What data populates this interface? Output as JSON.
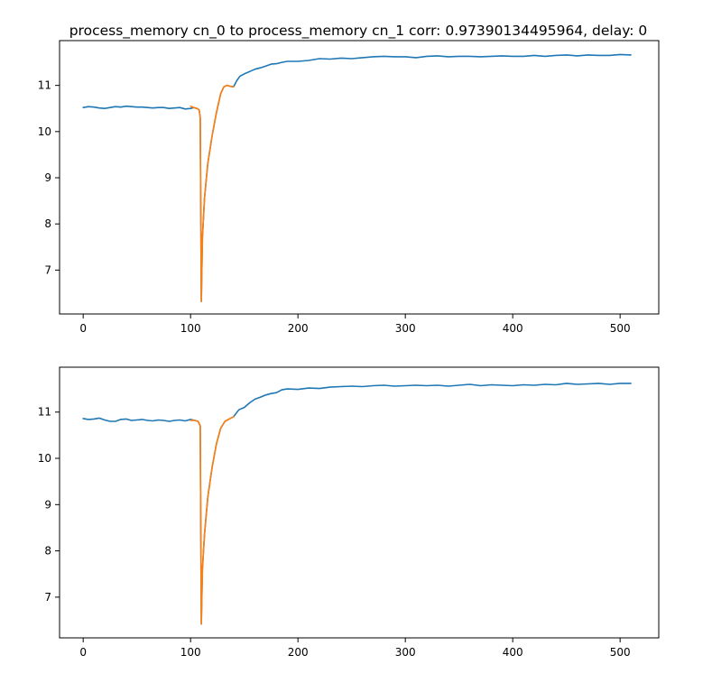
{
  "figure": {
    "title": "process_memory cn_0 to process_memory cn_1  corr: 0.97390134495964, delay: 0"
  },
  "chart_data": [
    {
      "type": "line",
      "title": "",
      "xlabel": "",
      "ylabel": "",
      "xlim": [
        -22,
        536
      ],
      "ylim": [
        6.05,
        11.97
      ],
      "xticks": [
        0,
        100,
        200,
        300,
        400,
        500
      ],
      "yticks": [
        7,
        8,
        9,
        10,
        11
      ],
      "grid": false,
      "legend": "none",
      "series": [
        {
          "color": "#1f77b4",
          "points": [
            [
              0,
              10.52
            ],
            [
              5,
              10.54
            ],
            [
              10,
              10.53
            ],
            [
              15,
              10.51
            ],
            [
              20,
              10.5
            ],
            [
              25,
              10.52
            ],
            [
              30,
              10.54
            ],
            [
              35,
              10.53
            ],
            [
              40,
              10.55
            ],
            [
              45,
              10.54
            ],
            [
              50,
              10.53
            ],
            [
              55,
              10.53
            ],
            [
              60,
              10.52
            ],
            [
              65,
              10.51
            ],
            [
              70,
              10.52
            ],
            [
              75,
              10.52
            ],
            [
              80,
              10.5
            ],
            [
              85,
              10.51
            ],
            [
              90,
              10.52
            ],
            [
              95,
              10.49
            ],
            [
              100,
              10.5
            ],
            [
              103,
              10.52
            ],
            [
              106,
              10.5
            ],
            [
              108,
              10.47
            ],
            [
              109,
              10.3
            ],
            [
              110,
              6.32
            ],
            [
              111,
              7.7
            ],
            [
              113,
              8.55
            ],
            [
              116,
              9.3
            ],
            [
              120,
              9.9
            ],
            [
              124,
              10.4
            ],
            [
              128,
              10.82
            ],
            [
              131,
              10.97
            ],
            [
              134,
              11.0
            ],
            [
              137,
              10.98
            ],
            [
              140,
              10.97
            ],
            [
              143,
              11.1
            ],
            [
              146,
              11.2
            ],
            [
              150,
              11.25
            ],
            [
              155,
              11.3
            ],
            [
              160,
              11.35
            ],
            [
              165,
              11.38
            ],
            [
              170,
              11.42
            ],
            [
              175,
              11.46
            ],
            [
              180,
              11.47
            ],
            [
              185,
              11.5
            ],
            [
              190,
              11.52
            ],
            [
              200,
              11.52
            ],
            [
              210,
              11.54
            ],
            [
              220,
              11.58
            ],
            [
              230,
              11.57
            ],
            [
              240,
              11.59
            ],
            [
              250,
              11.58
            ],
            [
              260,
              11.6
            ],
            [
              270,
              11.62
            ],
            [
              280,
              11.63
            ],
            [
              290,
              11.62
            ],
            [
              300,
              11.62
            ],
            [
              310,
              11.6
            ],
            [
              320,
              11.63
            ],
            [
              330,
              11.64
            ],
            [
              340,
              11.62
            ],
            [
              350,
              11.63
            ],
            [
              360,
              11.63
            ],
            [
              370,
              11.62
            ],
            [
              380,
              11.63
            ],
            [
              390,
              11.64
            ],
            [
              400,
              11.63
            ],
            [
              410,
              11.63
            ],
            [
              420,
              11.65
            ],
            [
              430,
              11.63
            ],
            [
              440,
              11.65
            ],
            [
              450,
              11.66
            ],
            [
              460,
              11.64
            ],
            [
              470,
              11.66
            ],
            [
              480,
              11.65
            ],
            [
              490,
              11.65
            ],
            [
              500,
              11.67
            ],
            [
              510,
              11.66
            ]
          ]
        },
        {
          "color": "#ff7f0e",
          "points": [
            [
              100,
              10.55
            ],
            [
              103,
              10.52
            ],
            [
              106,
              10.5
            ],
            [
              108,
              10.47
            ],
            [
              109,
              10.3
            ],
            [
              110,
              6.32
            ],
            [
              111,
              7.7
            ],
            [
              113,
              8.55
            ],
            [
              116,
              9.3
            ],
            [
              120,
              9.9
            ],
            [
              124,
              10.4
            ],
            [
              128,
              10.82
            ],
            [
              131,
              10.97
            ],
            [
              134,
              11.0
            ],
            [
              137,
              10.98
            ],
            [
              140,
              10.97
            ]
          ]
        }
      ]
    },
    {
      "type": "line",
      "title": "",
      "xlabel": "",
      "ylabel": "",
      "xlim": [
        -22,
        536
      ],
      "ylim": [
        6.12,
        11.97
      ],
      "xticks": [
        0,
        100,
        200,
        300,
        400,
        500
      ],
      "yticks": [
        7,
        8,
        9,
        10,
        11
      ],
      "grid": false,
      "legend": "none",
      "series": [
        {
          "color": "#1f77b4",
          "points": [
            [
              0,
              10.86
            ],
            [
              5,
              10.84
            ],
            [
              10,
              10.85
            ],
            [
              15,
              10.87
            ],
            [
              20,
              10.83
            ],
            [
              25,
              10.8
            ],
            [
              30,
              10.8
            ],
            [
              35,
              10.84
            ],
            [
              40,
              10.85
            ],
            [
              45,
              10.82
            ],
            [
              50,
              10.83
            ],
            [
              55,
              10.84
            ],
            [
              60,
              10.82
            ],
            [
              65,
              10.81
            ],
            [
              70,
              10.83
            ],
            [
              75,
              10.82
            ],
            [
              80,
              10.8
            ],
            [
              85,
              10.82
            ],
            [
              90,
              10.83
            ],
            [
              95,
              10.81
            ],
            [
              100,
              10.84
            ],
            [
              104,
              10.82
            ],
            [
              107,
              10.8
            ],
            [
              109,
              10.7
            ],
            [
              110,
              6.42
            ],
            [
              111,
              7.6
            ],
            [
              113,
              8.35
            ],
            [
              116,
              9.15
            ],
            [
              120,
              9.8
            ],
            [
              124,
              10.3
            ],
            [
              128,
              10.65
            ],
            [
              132,
              10.8
            ],
            [
              136,
              10.85
            ],
            [
              140,
              10.9
            ],
            [
              145,
              11.05
            ],
            [
              150,
              11.1
            ],
            [
              155,
              11.2
            ],
            [
              160,
              11.28
            ],
            [
              165,
              11.32
            ],
            [
              170,
              11.37
            ],
            [
              175,
              11.4
            ],
            [
              180,
              11.42
            ],
            [
              185,
              11.48
            ],
            [
              190,
              11.5
            ],
            [
              200,
              11.49
            ],
            [
              210,
              11.52
            ],
            [
              220,
              11.51
            ],
            [
              230,
              11.54
            ],
            [
              240,
              11.55
            ],
            [
              250,
              11.56
            ],
            [
              260,
              11.55
            ],
            [
              270,
              11.57
            ],
            [
              280,
              11.58
            ],
            [
              290,
              11.56
            ],
            [
              300,
              11.57
            ],
            [
              310,
              11.58
            ],
            [
              320,
              11.57
            ],
            [
              330,
              11.58
            ],
            [
              340,
              11.56
            ],
            [
              350,
              11.58
            ],
            [
              360,
              11.6
            ],
            [
              370,
              11.57
            ],
            [
              380,
              11.59
            ],
            [
              390,
              11.58
            ],
            [
              400,
              11.57
            ],
            [
              410,
              11.59
            ],
            [
              420,
              11.58
            ],
            [
              430,
              11.6
            ],
            [
              440,
              11.59
            ],
            [
              450,
              11.62
            ],
            [
              460,
              11.6
            ],
            [
              470,
              11.61
            ],
            [
              480,
              11.62
            ],
            [
              490,
              11.6
            ],
            [
              500,
              11.62
            ],
            [
              510,
              11.62
            ]
          ]
        },
        {
          "color": "#ff7f0e",
          "points": [
            [
              100,
              10.82
            ],
            [
              104,
              10.82
            ],
            [
              107,
              10.8
            ],
            [
              109,
              10.7
            ],
            [
              110,
              6.42
            ],
            [
              111,
              7.6
            ],
            [
              113,
              8.35
            ],
            [
              116,
              9.15
            ],
            [
              120,
              9.8
            ],
            [
              124,
              10.3
            ],
            [
              128,
              10.65
            ],
            [
              132,
              10.8
            ],
            [
              136,
              10.85
            ],
            [
              140,
              10.9
            ]
          ]
        }
      ]
    }
  ]
}
